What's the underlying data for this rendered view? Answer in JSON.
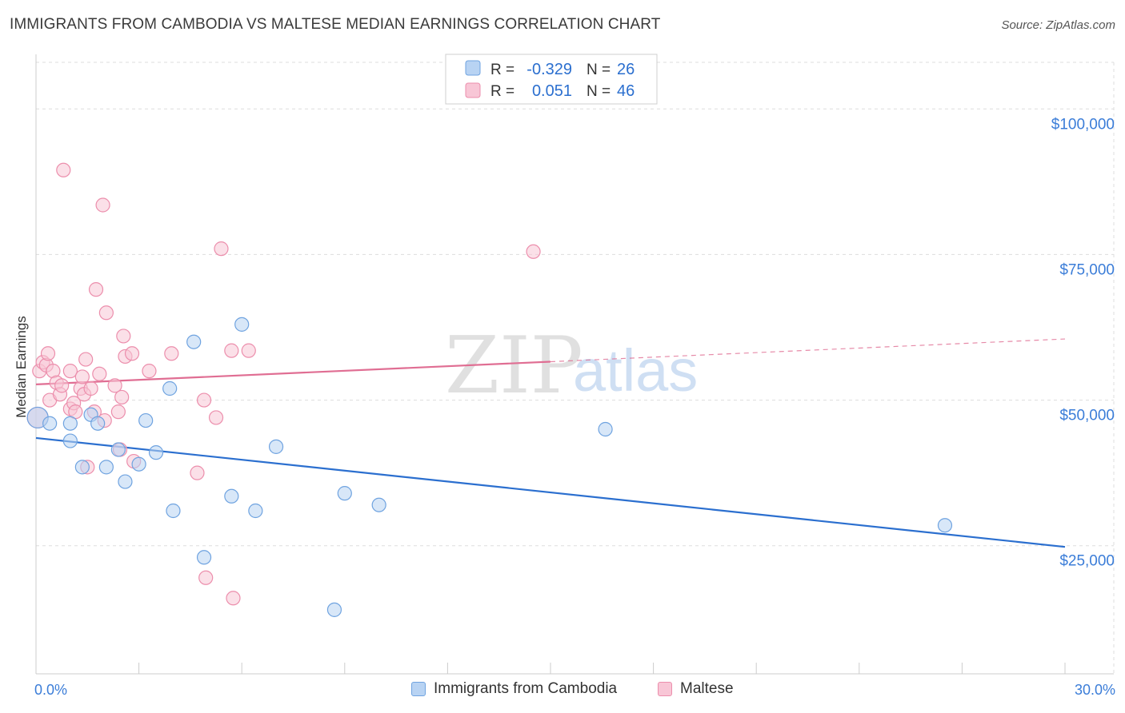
{
  "header": {
    "title": "IMMIGRANTS FROM CAMBODIA VS MALTESE MEDIAN EARNINGS CORRELATION CHART",
    "source": "Source: ZipAtlas.com"
  },
  "watermark": {
    "zip": "ZIP",
    "atlas": "atlas"
  },
  "colors": {
    "blue_fill": "#b8d3f3",
    "blue_stroke": "#6fa3e0",
    "blue_line": "#2b6fcf",
    "pink_fill": "#f8c6d6",
    "pink_stroke": "#ec8eac",
    "pink_line": "#e06e93",
    "axis_label": "#3b7dd8",
    "grid": "#dddddd"
  },
  "chart_data": {
    "type": "scatter",
    "title": "IMMIGRANTS FROM CAMBODIA VS MALTESE MEDIAN EARNINGS CORRELATION CHART",
    "xlabel": "",
    "ylabel": "Median Earnings",
    "xlim": [
      0,
      30
    ],
    "ylim": [
      3000,
      108000
    ],
    "x_tick_labels": [
      "0.0%",
      "30.0%"
    ],
    "y_ticks": [
      25000,
      50000,
      75000,
      100000
    ],
    "y_tick_labels": [
      "$25,000",
      "$50,000",
      "$75,000",
      "$100,000"
    ],
    "grid": true,
    "legend_position": "top-center",
    "stats": [
      {
        "r_label": "R =",
        "r_value": "-0.329",
        "n_label": "N =",
        "n_value": "26"
      },
      {
        "r_label": "R =",
        "r_value": "0.051",
        "n_label": "N =",
        "n_value": "46"
      }
    ],
    "series": [
      {
        "name": "Immigrants from Cambodia",
        "color": "#6fa3e0",
        "trend": {
          "x": [
            0,
            30
          ],
          "y": [
            43500,
            24800
          ],
          "dashed_from": null
        },
        "points": [
          [
            0.05,
            47000
          ],
          [
            0.4,
            46000
          ],
          [
            1.0,
            46000
          ],
          [
            1.0,
            43000
          ],
          [
            1.35,
            38500
          ],
          [
            1.6,
            47500
          ],
          [
            1.8,
            46000
          ],
          [
            2.05,
            38500
          ],
          [
            2.4,
            41500
          ],
          [
            2.6,
            36000
          ],
          [
            3.0,
            39000
          ],
          [
            3.2,
            46500
          ],
          [
            3.5,
            41000
          ],
          [
            3.9,
            52000
          ],
          [
            4.0,
            31000
          ],
          [
            4.6,
            60000
          ],
          [
            4.9,
            23000
          ],
          [
            5.7,
            33500
          ],
          [
            6.0,
            63000
          ],
          [
            6.4,
            31000
          ],
          [
            7.0,
            42000
          ],
          [
            8.7,
            14000
          ],
          [
            9.0,
            34000
          ],
          [
            10.0,
            32000
          ],
          [
            16.6,
            45000
          ],
          [
            26.5,
            28500
          ]
        ]
      },
      {
        "name": "Maltese",
        "color": "#ec8eac",
        "trend": {
          "x": [
            0,
            30
          ],
          "y": [
            52700,
            60500
          ],
          "dashed_from": 15
        },
        "points": [
          [
            0.05,
            47000
          ],
          [
            0.1,
            55000
          ],
          [
            0.2,
            56500
          ],
          [
            0.3,
            56000
          ],
          [
            0.35,
            58000
          ],
          [
            0.5,
            55000
          ],
          [
            0.4,
            50000
          ],
          [
            0.6,
            53000
          ],
          [
            0.7,
            51000
          ],
          [
            0.75,
            52500
          ],
          [
            0.8,
            89500
          ],
          [
            1.0,
            48500
          ],
          [
            1.0,
            55000
          ],
          [
            1.1,
            49500
          ],
          [
            1.15,
            48000
          ],
          [
            1.3,
            52000
          ],
          [
            1.35,
            54000
          ],
          [
            1.4,
            51000
          ],
          [
            1.45,
            57000
          ],
          [
            1.5,
            38500
          ],
          [
            1.6,
            52000
          ],
          [
            1.7,
            48000
          ],
          [
            1.75,
            69000
          ],
          [
            1.85,
            54500
          ],
          [
            1.95,
            83500
          ],
          [
            2.0,
            46500
          ],
          [
            2.05,
            65000
          ],
          [
            2.3,
            52500
          ],
          [
            2.4,
            48000
          ],
          [
            2.45,
            41500
          ],
          [
            2.5,
            50500
          ],
          [
            2.55,
            61000
          ],
          [
            2.6,
            57500
          ],
          [
            2.8,
            58000
          ],
          [
            2.85,
            39500
          ],
          [
            3.3,
            55000
          ],
          [
            3.95,
            58000
          ],
          [
            4.7,
            37500
          ],
          [
            4.9,
            50000
          ],
          [
            4.95,
            19500
          ],
          [
            5.25,
            47000
          ],
          [
            5.4,
            76000
          ],
          [
            5.7,
            58500
          ],
          [
            5.75,
            16000
          ],
          [
            6.2,
            58500
          ],
          [
            14.5,
            75500
          ]
        ]
      }
    ]
  },
  "legend_bottom": [
    {
      "label": "Immigrants from Cambodia"
    },
    {
      "label": "Maltese"
    }
  ]
}
